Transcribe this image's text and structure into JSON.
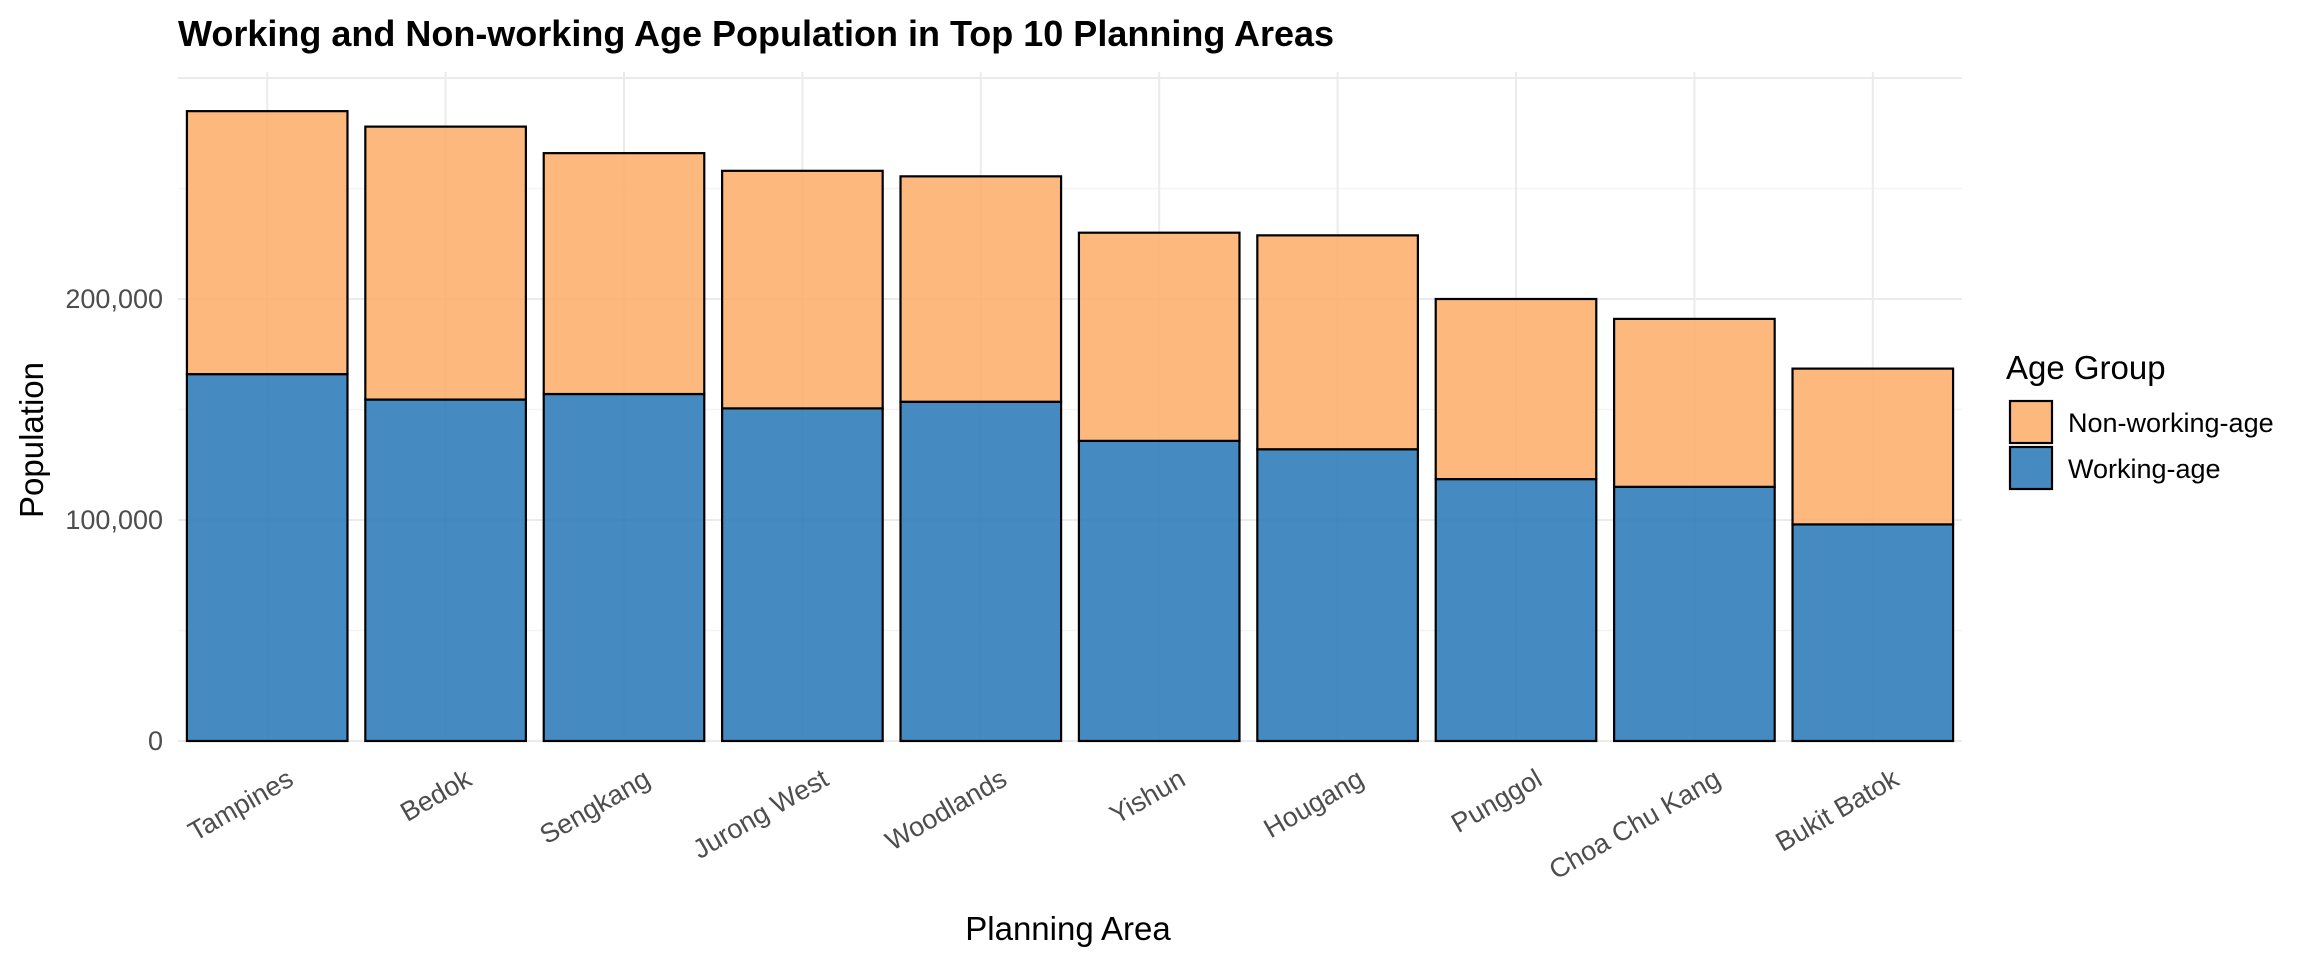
{
  "chart_data": {
    "type": "bar",
    "stacked": true,
    "title": "Working and Non-working Age Population in Top 10 Planning Areas",
    "xlabel": "Planning Area",
    "ylabel": "Population",
    "categories": [
      "Tampines",
      "Bedok",
      "Sengkang",
      "Jurong West",
      "Woodlands",
      "Yishun",
      "Hougang",
      "Punggol",
      "Choa Chu Kang",
      "Bukit Batok"
    ],
    "series": [
      {
        "name": "Working-age",
        "color": "#2b7bba",
        "values": [
          166000,
          154500,
          157000,
          150500,
          153500,
          135800,
          132000,
          118500,
          115000,
          98000
        ]
      },
      {
        "name": "Non-working-age",
        "color": "#fdae6b",
        "values": [
          119000,
          123500,
          109000,
          107500,
          102000,
          94200,
          96800,
          81500,
          76000,
          70500
        ]
      }
    ],
    "yticks": [
      0,
      100000,
      200000
    ],
    "ytick_labels": [
      "0",
      "100,000",
      "200,000"
    ],
    "ylim": [
      0,
      300000
    ],
    "grid": true,
    "legend": {
      "title": "Age Group",
      "position": "right",
      "items": [
        "Non-working-age",
        "Working-age"
      ]
    }
  }
}
